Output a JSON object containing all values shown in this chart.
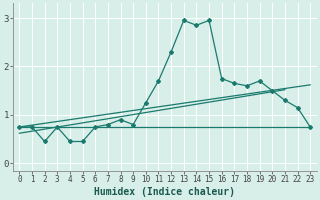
{
  "title": "",
  "xlabel": "Humidex (Indice chaleur)",
  "bg_color": "#d8eee8",
  "line_color": "#1a7a6e",
  "grid_color": "#ffffff",
  "xlim": [
    -0.5,
    23.5
  ],
  "ylim": [
    -0.15,
    3.3
  ],
  "xticks": [
    0,
    1,
    2,
    3,
    4,
    5,
    6,
    7,
    8,
    9,
    10,
    11,
    12,
    13,
    14,
    15,
    16,
    17,
    18,
    19,
    20,
    21,
    22,
    23
  ],
  "yticks": [
    0,
    1,
    2,
    3
  ],
  "curve_x": [
    0,
    1,
    2,
    3,
    4,
    5,
    6,
    7,
    8,
    9,
    10,
    11,
    12,
    13,
    14,
    15,
    16,
    17,
    18,
    19,
    20,
    21,
    22,
    23
  ],
  "curve_y": [
    0.75,
    0.75,
    0.45,
    0.75,
    0.45,
    0.45,
    0.75,
    0.8,
    0.9,
    0.8,
    1.25,
    1.7,
    2.3,
    2.95,
    2.85,
    2.95,
    1.75,
    1.65,
    1.6,
    1.7,
    1.5,
    1.3,
    1.15,
    0.75
  ],
  "line1_x": [
    0,
    23
  ],
  "line1_y": [
    0.75,
    0.75
  ],
  "line2_x": [
    0,
    21
  ],
  "line2_y": [
    0.62,
    1.52
  ],
  "line3_x": [
    0,
    23
  ],
  "line3_y": [
    0.75,
    1.62
  ],
  "xlabel_fontsize": 7,
  "tick_fontsize": 5.5
}
